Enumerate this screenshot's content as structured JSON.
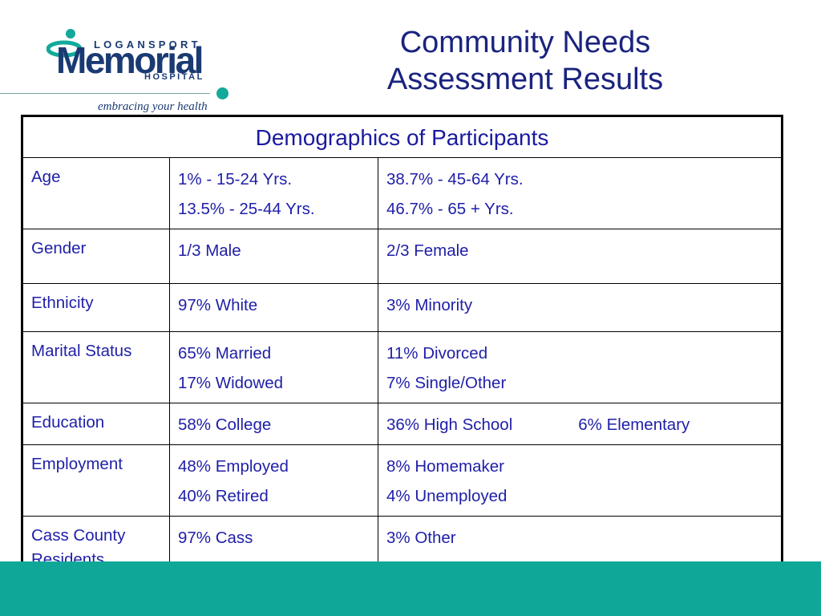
{
  "logo": {
    "top_text": "LOGANSPORT",
    "main_text": "Memorial",
    "bottom_text": "HOSPITAL",
    "tagline": "embracing your health"
  },
  "title": {
    "line1": "Community Needs",
    "line2": "Assessment Results"
  },
  "table": {
    "header": "Demographics of Participants",
    "rows": [
      {
        "label": "Age",
        "col2": [
          "1% - 15-24 Yrs.",
          "13.5% - 25-44 Yrs."
        ],
        "col3": [
          "38.7% - 45-64 Yrs.",
          "46.7% - 65 + Yrs."
        ]
      },
      {
        "label": "Gender",
        "col2": [
          "1/3 Male"
        ],
        "col3": [
          "2/3 Female"
        ]
      },
      {
        "label": "Ethnicity",
        "col2": [
          "97% White"
        ],
        "col3": [
          "3% Minority"
        ]
      },
      {
        "label": "Marital Status",
        "col2": [
          "65% Married",
          "17% Widowed"
        ],
        "col3": [
          "11% Divorced",
          "7% Single/Other"
        ]
      },
      {
        "label": "Education",
        "col2": [
          "58% College"
        ],
        "col3": [
          "36% High School",
          "6% Elementary"
        ]
      },
      {
        "label": "Employment",
        "col2": [
          "48% Employed",
          "40% Retired"
        ],
        "col3": [
          "8% Homemaker",
          "4% Unemployed"
        ]
      },
      {
        "label": "Cass County Residents",
        "col2": [
          "97% Cass"
        ],
        "col3": [
          "3% Other"
        ]
      }
    ]
  },
  "colors": {
    "brand_navy": "#1a3a73",
    "brand_teal": "#0fa898",
    "text_blue": "#1f1fa8"
  }
}
